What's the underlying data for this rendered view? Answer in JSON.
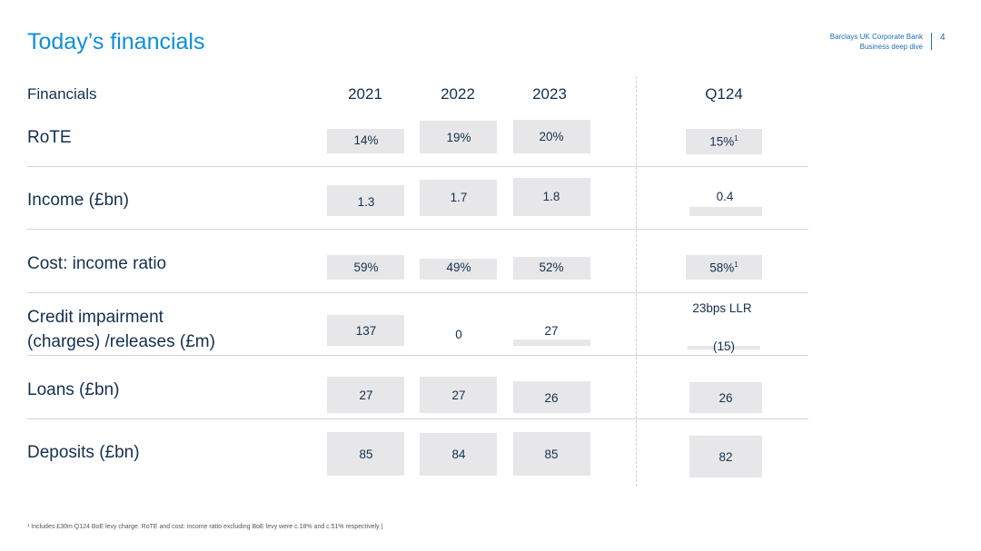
{
  "header": {
    "title": "Today’s financials",
    "brand_line1": "Barclays UK Corporate Bank",
    "brand_line2": "Business deep dive",
    "page_number": "4"
  },
  "table": {
    "label_header": "Financials",
    "columns": [
      "2021",
      "2022",
      "2023",
      "Q124"
    ],
    "rows": [
      {
        "label": "RoTE",
        "values": [
          "14%",
          "19%",
          "20%",
          "15%"
        ],
        "q124_note": "1"
      },
      {
        "label": "Income (£bn)",
        "values": [
          "1.3",
          "1.7",
          "1.8",
          "0.4"
        ]
      },
      {
        "label": "Cost: income ratio",
        "values": [
          "59%",
          "49%",
          "52%",
          "58%"
        ],
        "q124_note": "1"
      },
      {
        "label_line1": "Credit impairment",
        "label_line2": "(charges) /releases (£m)",
        "values": [
          "137",
          "0",
          "27",
          "(15)"
        ],
        "q124_extra": "23bps LLR"
      },
      {
        "label": "Loans (£bn)",
        "values": [
          "27",
          "27",
          "26",
          "26"
        ]
      },
      {
        "label": "Deposits (£bn)",
        "values": [
          "85",
          "84",
          "85",
          "82"
        ]
      }
    ]
  },
  "chart_data": {
    "type": "table",
    "title": "Today’s financials",
    "columns": [
      "Financials",
      "2021",
      "2022",
      "2023",
      "Q124"
    ],
    "rows": [
      [
        "RoTE",
        "14%",
        "19%",
        "20%",
        "15%¹"
      ],
      [
        "Income (£bn)",
        "1.3",
        "1.7",
        "1.8",
        "0.4"
      ],
      [
        "Cost: income ratio",
        "59%",
        "49%",
        "52%",
        "58%¹"
      ],
      [
        "Credit impairment (charges) /releases (£m)",
        "137",
        "0",
        "27",
        "(15)"
      ],
      [
        "Loans (£bn)",
        "27",
        "27",
        "26",
        "26"
      ],
      [
        "Deposits (£bn)",
        "85",
        "84",
        "85",
        "82"
      ]
    ],
    "annotations": [
      "23bps LLR"
    ]
  },
  "footnote": "¹ Includes £30m Q124 BoE levy charge. RoTE and cost: income ratio excluding BoE levy were c.18% and c.51% respectively |"
}
